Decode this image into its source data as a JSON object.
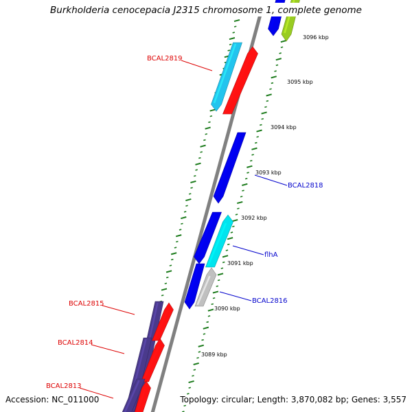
{
  "title": "Burkholderia cenocepacia J2315 chromosome 1, complete genome",
  "footer": {
    "accession": "Accession: NC_011000",
    "summary": "Topology: circular; Length: 3,870,082 bp; Genes: 3,557"
  },
  "colors": {
    "backbone": "#808080",
    "tick": "#1a7a1a",
    "forward_label": "#0000cc",
    "reverse_label": "#dd0000",
    "leader_forward": "#0000cc",
    "leader_reverse": "#dd0000"
  },
  "scale": {
    "ticks": [
      "3089 kbp",
      "3090 kbp",
      "3091 kbp",
      "3092 kbp",
      "3093 kbp",
      "3094 kbp",
      "3095 kbp",
      "3096 kbp"
    ]
  },
  "genes": [
    {
      "label": "",
      "strand": "reverse",
      "color": "#0000ee"
    },
    {
      "label": "",
      "strand": "reverse",
      "color": "#99cc22"
    },
    {
      "label": "BCAL2819",
      "strand": "forward",
      "color": "#22c4ee"
    },
    {
      "label": "BCAL2819",
      "strand": "reverse",
      "color": "#ff1111"
    },
    {
      "label": "BCAL2818",
      "strand": "forward",
      "color": "#0000ee"
    },
    {
      "label": "",
      "strand": "forward",
      "color": "#0000ee"
    },
    {
      "label": "flhA",
      "strand": "reverse",
      "color": "#00e4ee"
    },
    {
      "label": "",
      "strand": "forward",
      "color": "#0000ee"
    },
    {
      "label": "BCAL2816",
      "strand": "reverse",
      "color": "#c0c0c0"
    },
    {
      "label": "BCAL2815",
      "strand": "forward",
      "color": "#4a3a8c"
    },
    {
      "label": "BCAL2815",
      "strand": "reverse",
      "color": "#ff1111"
    },
    {
      "label": "BCAL2814",
      "strand": "forward",
      "color": "#4a3a8c"
    },
    {
      "label": "BCAL2814",
      "strand": "reverse",
      "color": "#ff1111"
    },
    {
      "label": "BCAL2813",
      "strand": "forward",
      "color": "#4a3a8c"
    },
    {
      "label": "BCAL2813",
      "strand": "reverse",
      "color": "#ff1111"
    }
  ],
  "callouts": [
    {
      "text": "BCAL2819",
      "side": "left"
    },
    {
      "text": "BCAL2818",
      "side": "right"
    },
    {
      "text": "flhA",
      "side": "right"
    },
    {
      "text": "BCAL2816",
      "side": "right"
    },
    {
      "text": "BCAL2815",
      "side": "left"
    },
    {
      "text": "BCAL2814",
      "side": "left"
    },
    {
      "text": "BCAL2813",
      "side": "left"
    }
  ]
}
